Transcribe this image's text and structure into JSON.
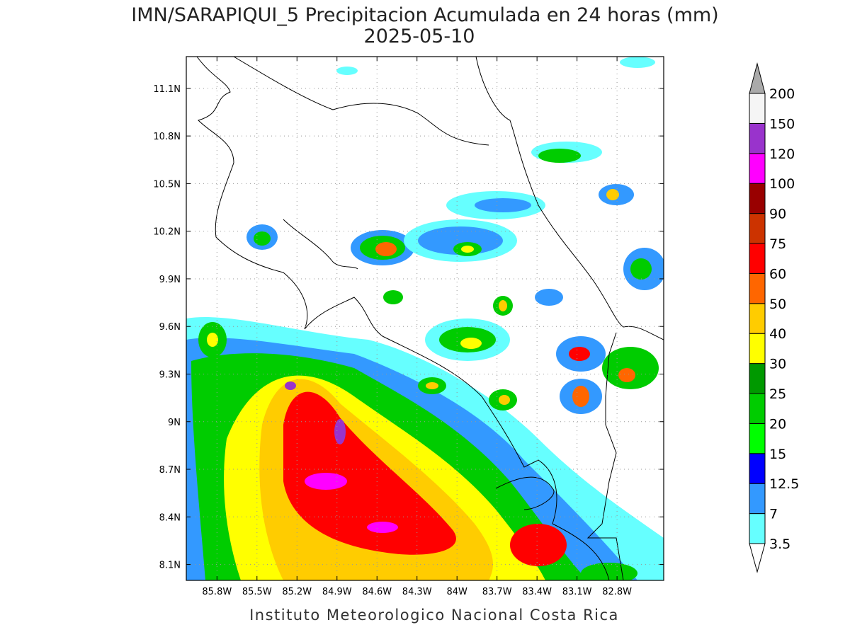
{
  "map": {
    "title": "IMN/SARAPIQUI_5 Precipitacion Acumulada en 24 horas (mm)",
    "subtitle": "2025-05-10",
    "lon_range": [
      -86.03,
      -82.45
    ],
    "lat_range": [
      8.0,
      11.3
    ],
    "lat_ticks": [
      {
        "value": 8.1,
        "label": "8.1N"
      },
      {
        "value": 8.4,
        "label": "8.4N"
      },
      {
        "value": 8.7,
        "label": "8.7N"
      },
      {
        "value": 9.0,
        "label": "9N"
      },
      {
        "value": 9.3,
        "label": "9.3N"
      },
      {
        "value": 9.6,
        "label": "9.6N"
      },
      {
        "value": 9.9,
        "label": "9.9N"
      },
      {
        "value": 10.2,
        "label": "10.2N"
      },
      {
        "value": 10.5,
        "label": "10.5N"
      },
      {
        "value": 10.8,
        "label": "10.8N"
      },
      {
        "value": 11.1,
        "label": "11.1N"
      }
    ],
    "lon_ticks": [
      {
        "value": -85.8,
        "label": "85.8W"
      },
      {
        "value": -85.5,
        "label": "85.5W"
      },
      {
        "value": -85.2,
        "label": "85.2W"
      },
      {
        "value": -84.9,
        "label": "84.9W"
      },
      {
        "value": -84.6,
        "label": "84.6W"
      },
      {
        "value": -84.3,
        "label": "84.3W"
      },
      {
        "value": -84.0,
        "label": "84W"
      },
      {
        "value": -83.7,
        "label": "83.7W"
      },
      {
        "value": -83.4,
        "label": "83.4W"
      },
      {
        "value": -83.1,
        "label": "83.1W"
      },
      {
        "value": -82.8,
        "label": "82.8W"
      }
    ],
    "footer": "Instituto Meteorologico Nacional Costa Rica"
  },
  "colorbar": {
    "levels": [
      3.5,
      7,
      12.5,
      15,
      20,
      25,
      30,
      40,
      50,
      60,
      75,
      90,
      100,
      120,
      150,
      200
    ],
    "colors": [
      "#66ffff",
      "#3399ff",
      "#0000ff",
      "#00ff00",
      "#00cc00",
      "#009900",
      "#ffff00",
      "#ffcc00",
      "#ff6600",
      "#ff0000",
      "#cc3300",
      "#990000",
      "#ff00ff",
      "#9933cc",
      "#f5f5f5"
    ],
    "under_color": "#ffffff",
    "over_color": "#aaaaaa"
  }
}
